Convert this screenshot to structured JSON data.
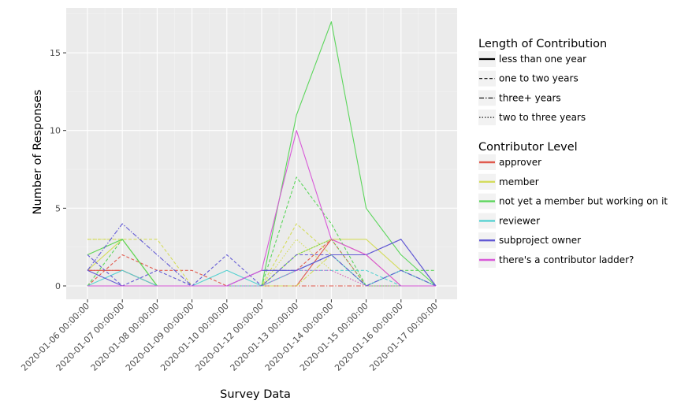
{
  "chart_data": {
    "type": "line",
    "title": "",
    "xlabel": "Survey Data",
    "ylabel": "Number of Responses",
    "x": [
      "2020-01-06 00:00:00",
      "2020-01-07 00:00:00",
      "2020-01-08 00:00:00",
      "2020-01-09 00:00:00",
      "2020-01-10 00:00:00",
      "2020-01-12 00:00:00",
      "2020-01-13 00:00:00",
      "2020-01-14 00:00:00",
      "2020-01-15 00:00:00",
      "2020-01-16 00:00:00",
      "2020-01-17 00:00:00"
    ],
    "ylim": [
      -0.85,
      17.85
    ],
    "yticks": [
      0,
      5,
      10,
      15
    ],
    "grid": true,
    "legend_position": "right",
    "legends": {
      "linetype": {
        "title": "Length of Contribution",
        "items": [
          {
            "label": "less than one year",
            "dash": "solid"
          },
          {
            "label": "one to two years",
            "dash": "dashed"
          },
          {
            "label": "three+ years",
            "dash": "dashdot"
          },
          {
            "label": "two to three years",
            "dash": "dotted"
          }
        ]
      },
      "color": {
        "title": "Contributor Level",
        "items": [
          {
            "label": "approver",
            "color": "#e05a4e"
          },
          {
            "label": "member",
            "color": "#d4dc5c"
          },
          {
            "label": "not yet a member but working on it",
            "color": "#5cd65c"
          },
          {
            "label": "reviewer",
            "color": "#56d1d1"
          },
          {
            "label": "subproject owner",
            "color": "#6259d4"
          },
          {
            "label": "there's a contributor ladder?",
            "color": "#d85ad8"
          }
        ]
      }
    },
    "series": [
      {
        "color_label": "approver",
        "dash": "solid",
        "values": [
          1,
          1,
          0,
          0,
          0,
          0,
          0,
          3,
          2,
          0,
          0
        ]
      },
      {
        "color_label": "approver",
        "dash": "dashed",
        "values": [
          0,
          2,
          1,
          1,
          0,
          0,
          1,
          3,
          0,
          0,
          0
        ]
      },
      {
        "color_label": "approver",
        "dash": "dashdot",
        "values": [
          1,
          1,
          0,
          0,
          0,
          0,
          0,
          0,
          0,
          0,
          0
        ]
      },
      {
        "color_label": "member",
        "dash": "solid",
        "values": [
          1,
          3,
          0,
          0,
          0,
          0,
          2,
          3,
          3,
          1,
          0
        ]
      },
      {
        "color_label": "member",
        "dash": "dashed",
        "values": [
          3,
          3,
          3,
          0,
          0,
          0,
          4,
          2,
          0,
          0,
          0
        ]
      },
      {
        "color_label": "member",
        "dash": "dashdot",
        "values": [
          2,
          3,
          0,
          0,
          0,
          0,
          0,
          2,
          0,
          0,
          0
        ]
      },
      {
        "color_label": "member",
        "dash": "dotted",
        "values": [
          3,
          3,
          0,
          0,
          0,
          0,
          3,
          1,
          0,
          0,
          0
        ]
      },
      {
        "color_label": "not yet a member but working on it",
        "dash": "solid",
        "values": [
          2,
          3,
          0,
          0,
          0,
          0,
          11,
          17,
          5,
          2,
          0
        ]
      },
      {
        "color_label": "not yet a member but working on it",
        "dash": "dashed",
        "values": [
          0,
          3,
          0,
          0,
          0,
          0,
          7,
          4,
          0,
          1,
          1
        ]
      },
      {
        "color_label": "not yet a member but working on it",
        "dash": "dotted",
        "values": [
          0,
          0,
          0,
          0,
          0,
          0,
          2,
          3,
          0,
          0,
          0
        ]
      },
      {
        "color_label": "reviewer",
        "dash": "solid",
        "values": [
          0,
          1,
          0,
          0,
          1,
          0,
          1,
          2,
          0,
          1,
          0
        ]
      },
      {
        "color_label": "reviewer",
        "dash": "dashed",
        "values": [
          0,
          0,
          0,
          0,
          0,
          0,
          1,
          1,
          1,
          0,
          0
        ]
      },
      {
        "color_label": "subproject owner",
        "dash": "solid",
        "values": [
          1,
          0,
          0,
          0,
          0,
          1,
          1,
          2,
          2,
          3,
          0
        ]
      },
      {
        "color_label": "subproject owner",
        "dash": "dashed",
        "values": [
          2,
          0,
          1,
          0,
          2,
          0,
          2,
          2,
          2,
          3,
          0
        ]
      },
      {
        "color_label": "subproject owner",
        "dash": "dashdot",
        "values": [
          1,
          4,
          2,
          0,
          0,
          1,
          1,
          2,
          0,
          1,
          0
        ]
      },
      {
        "color_label": "there's a contributor ladder?",
        "dash": "solid",
        "values": [
          0,
          0,
          0,
          0,
          0,
          1,
          10,
          3,
          2,
          0,
          0
        ]
      },
      {
        "color_label": "there's a contributor ladder?",
        "dash": "dotted",
        "values": [
          0,
          0,
          0,
          0,
          0,
          0,
          1,
          1,
          0,
          0,
          0
        ]
      }
    ]
  }
}
